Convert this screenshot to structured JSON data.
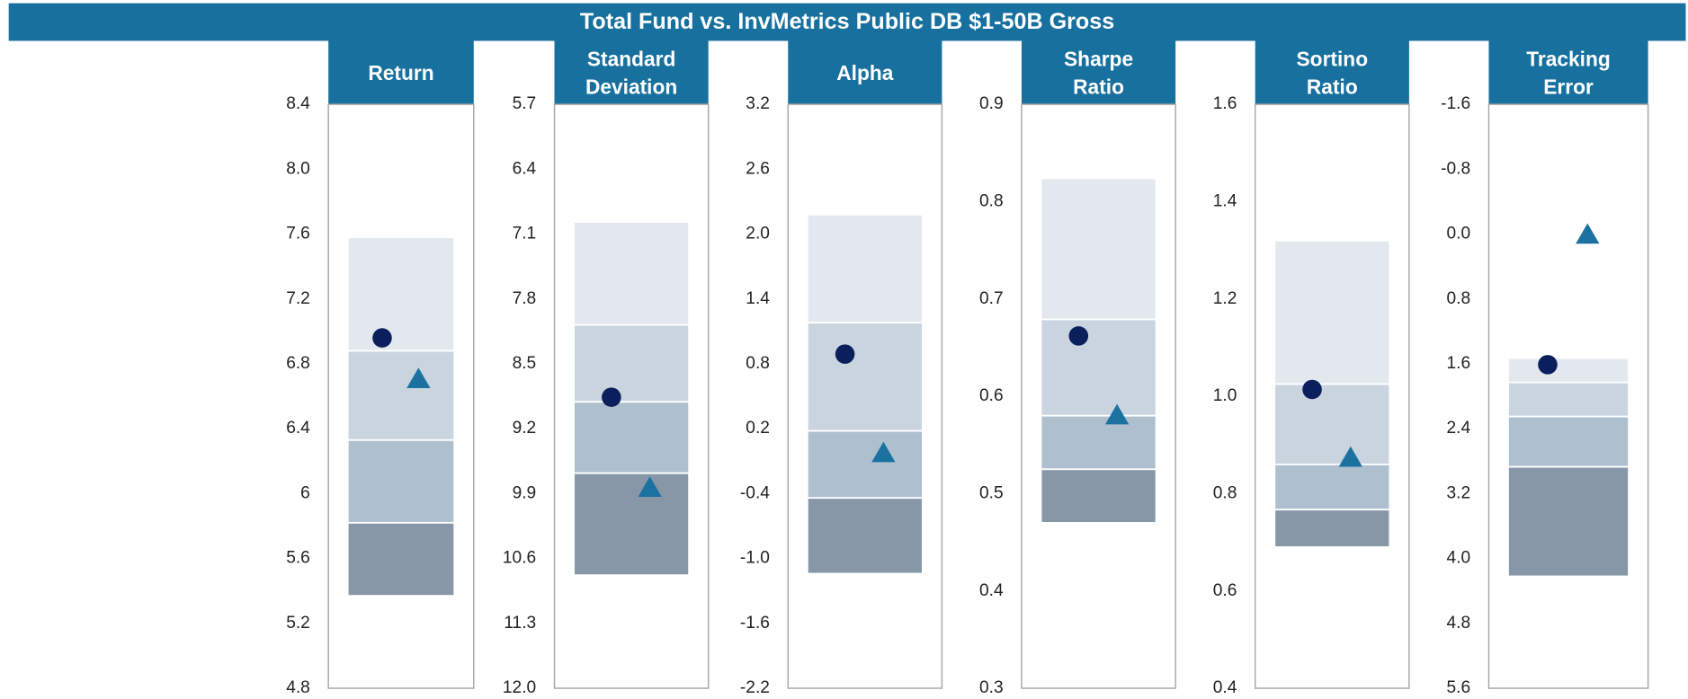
{
  "header": {
    "title": "Total Fund vs. InvMetrics Public DB $1-50B Gross"
  },
  "chart_data": [
    {
      "type": "range",
      "title": [
        "Return"
      ],
      "ylim": [
        4.8,
        8.4
      ],
      "yticks": [
        {
          "value": 4.8,
          "label": "4.8"
        },
        5.2,
        5.6,
        6,
        6.4,
        6.8,
        7.2,
        7.6,
        {
          "value": 8,
          "label": "8.0"
        },
        8.4
      ],
      "range": [
        7.58,
        6.88,
        6.33,
        5.82,
        5.37
      ],
      "band_colors": [
        "#e3e8ef",
        "#c9d4df",
        "#aebfce",
        "#8797a8"
      ],
      "markers": [
        {
          "shape": "circle",
          "color": "#0b1f5c",
          "value": 6.96
        },
        {
          "shape": "triangle",
          "color": "#1b72a0",
          "value": 6.71
        }
      ]
    },
    {
      "type": "range",
      "title": [
        "Standard",
        "Deviation"
      ],
      "ylim": [
        12,
        5.7
      ],
      "yticks": [
        5.7,
        6.4,
        7.1,
        7.8,
        8.5,
        9.2,
        9.9,
        10.6,
        11.3,
        {
          "value": 12,
          "label": "12.0"
        }
      ],
      "range": [
        6.97,
        8.08,
        8.91,
        9.68,
        10.78
      ],
      "band_colors": [
        "#e3e8ef",
        "#c9d4df",
        "#aebfce",
        "#8797a8"
      ],
      "markers": [
        {
          "shape": "circle",
          "color": "#0b1f5c",
          "value": 8.86
        },
        {
          "shape": "triangle",
          "color": "#1b72a0",
          "value": 9.83
        }
      ]
    },
    {
      "type": "range",
      "title": [
        "Alpha"
      ],
      "ylim": [
        -2.2,
        3.2
      ],
      "yticks": [
        -2.2,
        -1.6,
        {
          "value": -1,
          "label": "-1.0"
        },
        -0.4,
        0.2,
        0.8,
        1.4,
        {
          "value": 2,
          "label": "2.0"
        },
        2.6,
        3.2
      ],
      "range": [
        2.18,
        1.18,
        0.18,
        -0.44,
        -1.14
      ],
      "band_colors": [
        "#e3e8ef",
        "#c9d4df",
        "#aebfce",
        "#8797a8"
      ],
      "markers": [
        {
          "shape": "circle",
          "color": "#0b1f5c",
          "value": 0.89
        },
        {
          "shape": "triangle",
          "color": "#1b72a0",
          "value": -0.02
        }
      ]
    },
    {
      "type": "range",
      "title": [
        "Sharpe",
        "Ratio"
      ],
      "ylim": [
        0.3,
        0.9
      ],
      "yticks": [
        0.3,
        0.4,
        0.5,
        0.6,
        0.7,
        0.8,
        0.9
      ],
      "range": [
        0.824,
        0.679,
        0.58,
        0.525,
        0.47
      ],
      "band_colors": [
        "#e3e8ef",
        "#c9d4df",
        "#aebfce",
        "#8797a8"
      ],
      "markers": [
        {
          "shape": "circle",
          "color": "#0b1f5c",
          "value": 0.662
        },
        {
          "shape": "triangle",
          "color": "#1b72a0",
          "value": 0.581
        }
      ]
    },
    {
      "type": "range",
      "title": [
        "Sortino",
        "Ratio"
      ],
      "ylim": [
        0.4,
        1.6
      ],
      "yticks": [
        0.4,
        0.6,
        0.8,
        {
          "value": 1,
          "label": "1.0"
        },
        1.2,
        1.4,
        1.6
      ],
      "range": [
        1.32,
        1.025,
        0.86,
        0.767,
        0.69
      ],
      "band_colors": [
        "#e3e8ef",
        "#c9d4df",
        "#aebfce",
        "#8797a8"
      ],
      "markers": [
        {
          "shape": "circle",
          "color": "#0b1f5c",
          "value": 1.014
        },
        {
          "shape": "triangle",
          "color": "#1b72a0",
          "value": 0.875
        }
      ]
    },
    {
      "type": "range",
      "title": [
        "Tracking",
        "Error"
      ],
      "ylim": [
        5.6,
        -1.6
      ],
      "yticks": [
        -1.6,
        -0.8,
        {
          "value": 0,
          "label": "0.0"
        },
        0.8,
        1.6,
        2.4,
        3.2,
        {
          "value": 4,
          "label": "4.0"
        },
        4.8,
        5.6
      ],
      "range": [
        1.53,
        1.83,
        2.25,
        2.87,
        4.22
      ],
      "band_colors": [
        "#e3e8ef",
        "#c9d4df",
        "#aebfce",
        "#8797a8"
      ],
      "markers": [
        {
          "shape": "circle",
          "color": "#0b1f5c",
          "value": 1.61
        },
        {
          "shape": "triangle",
          "color": "#1b72a0",
          "value": 0
        }
      ]
    }
  ]
}
